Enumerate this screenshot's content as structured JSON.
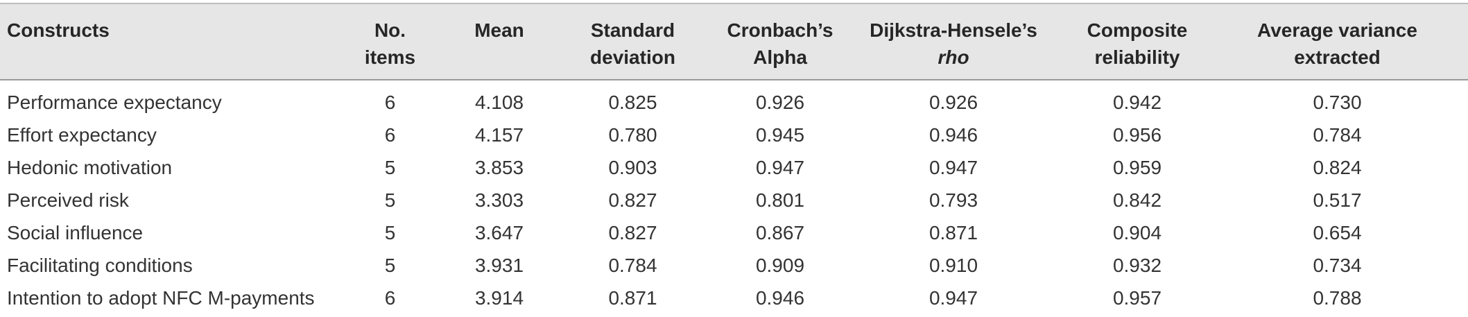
{
  "table": {
    "headers": [
      {
        "line1": "Constructs",
        "line2": ""
      },
      {
        "line1": "No.",
        "line2": "items"
      },
      {
        "line1": "Mean",
        "line2": ""
      },
      {
        "line1": "Standard",
        "line2": "deviation"
      },
      {
        "line1": "Cronbach’s",
        "line2": "Alpha"
      },
      {
        "line1": "Dijkstra-Hensele’s",
        "line2": "rho"
      },
      {
        "line1": "Composite",
        "line2": "reliability"
      },
      {
        "line1": "Average variance",
        "line2": "extracted"
      }
    ],
    "rows": [
      [
        "Performance expectancy",
        "6",
        "4.108",
        "0.825",
        "0.926",
        "0.926",
        "0.942",
        "0.730"
      ],
      [
        "Effort expectancy",
        "6",
        "4.157",
        "0.780",
        "0.945",
        "0.946",
        "0.956",
        "0.784"
      ],
      [
        "Hedonic motivation",
        "5",
        "3.853",
        "0.903",
        "0.947",
        "0.947",
        "0.959",
        "0.824"
      ],
      [
        "Perceived risk",
        "5",
        "3.303",
        "0.827",
        "0.801",
        "0.793",
        "0.842",
        "0.517"
      ],
      [
        "Social influence",
        "5",
        "3.647",
        "0.827",
        "0.867",
        "0.871",
        "0.904",
        "0.654"
      ],
      [
        "Facilitating conditions",
        "5",
        "3.931",
        "0.784",
        "0.909",
        "0.910",
        "0.932",
        "0.734"
      ],
      [
        "Intention to adopt NFC M-payments",
        "6",
        "3.914",
        "0.871",
        "0.946",
        "0.947",
        "0.957",
        "0.788"
      ]
    ]
  },
  "colors": {
    "header_background": "#e6e6e6",
    "text": "#2b2b2b",
    "rule": "#9a9a9a"
  }
}
